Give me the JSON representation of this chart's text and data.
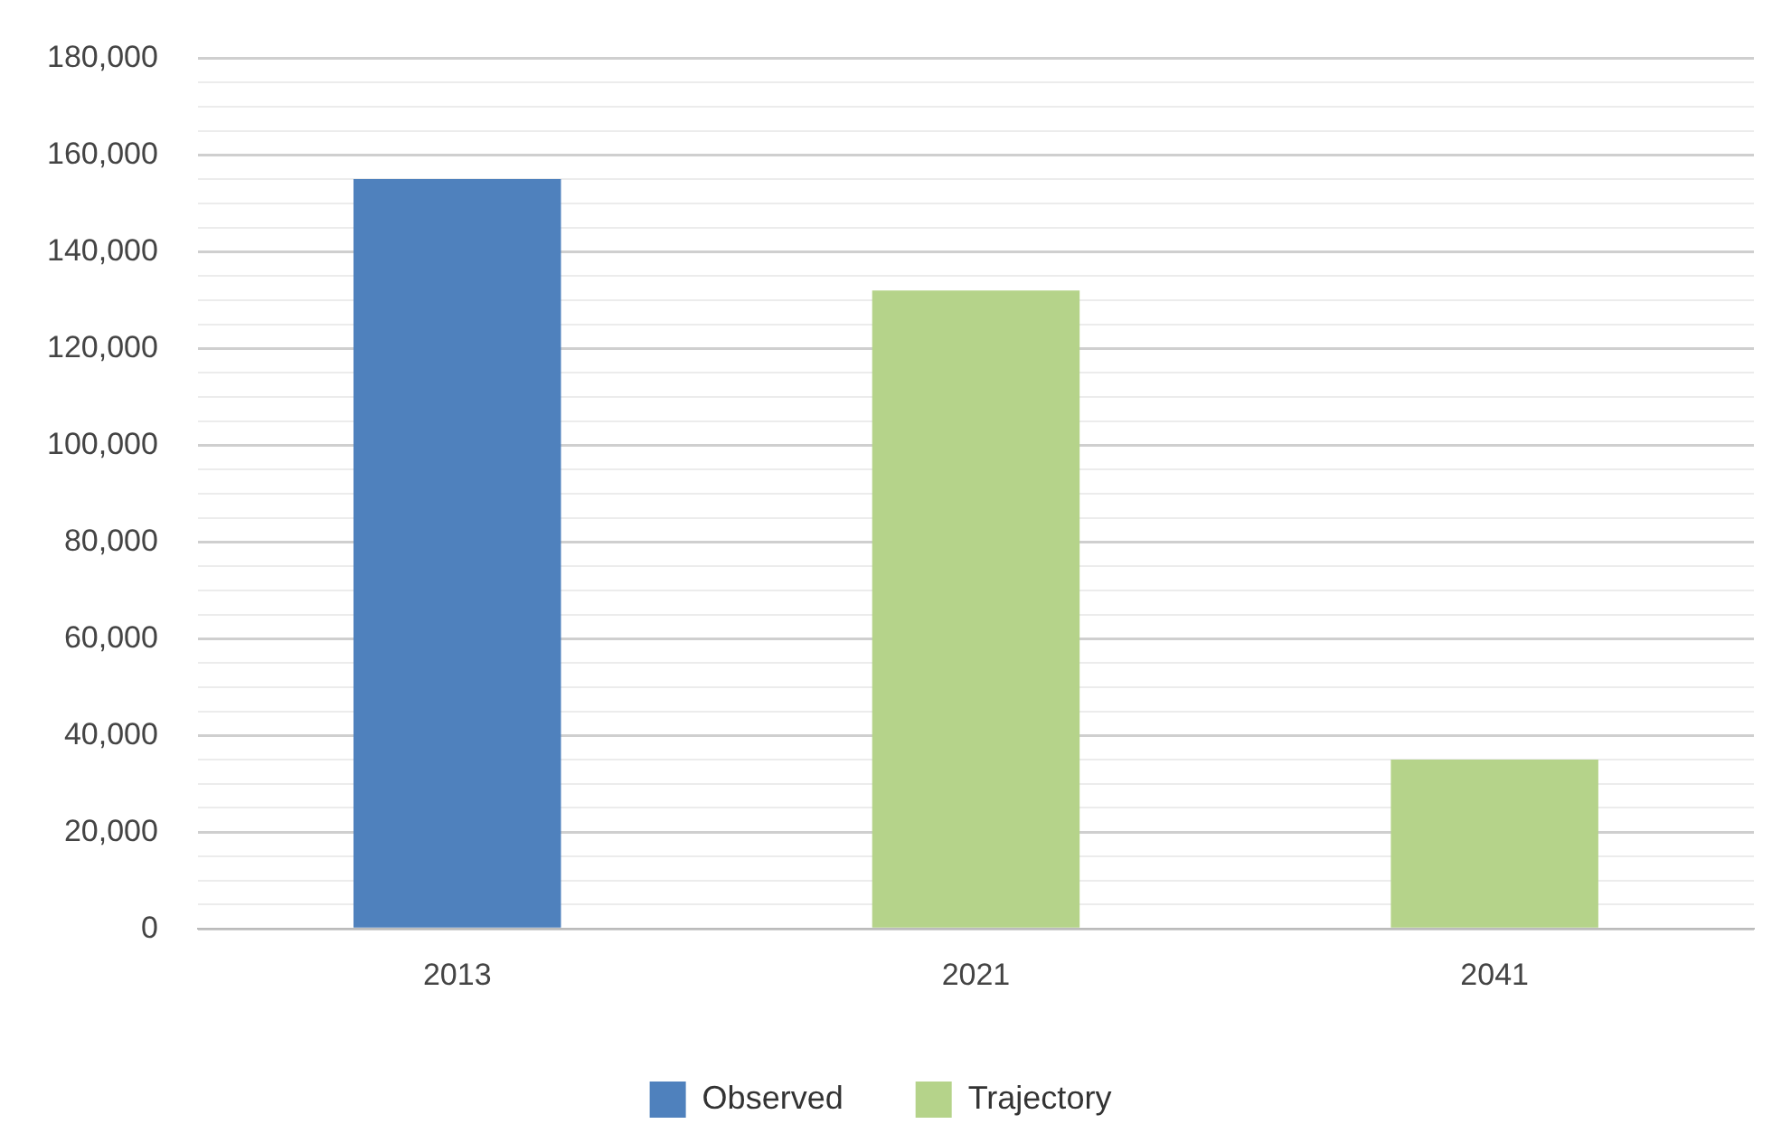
{
  "chart_data": {
    "type": "bar",
    "categories": [
      "2013",
      "2021",
      "2041"
    ],
    "series": [
      {
        "name": "Observed",
        "color": "#4f81bd",
        "values": [
          155000,
          null,
          null
        ]
      },
      {
        "name": "Trajectory",
        "color": "#b5d38a",
        "values": [
          null,
          132000,
          35000
        ]
      }
    ],
    "ylim": [
      0,
      180000
    ],
    "yticks": [
      0,
      {
        "value": 5000,
        "label": null
      },
      {
        "value": 10000,
        "label": null
      },
      {
        "value": 15000,
        "label": null
      },
      {
        "value": 20000,
        "label": "20,000"
      },
      {
        "value": 25000,
        "label": null
      },
      {
        "value": 30000,
        "label": null
      },
      {
        "value": 35000,
        "label": null
      },
      {
        "value": 40000,
        "label": "40,000"
      },
      {
        "value": 45000,
        "label": null
      },
      {
        "value": 50000,
        "label": null
      },
      {
        "value": 55000,
        "label": null
      },
      {
        "value": 60000,
        "label": "60,000"
      },
      {
        "value": 65000,
        "label": null
      },
      {
        "value": 70000,
        "label": null
      },
      {
        "value": 75000,
        "label": null
      },
      {
        "value": 80000,
        "label": "80,000"
      },
      {
        "value": 85000,
        "label": null
      },
      {
        "value": 90000,
        "label": null
      },
      {
        "value": 95000,
        "label": null
      },
      {
        "value": 100000,
        "label": "100,000"
      },
      {
        "value": 105000,
        "label": null
      },
      {
        "value": 110000,
        "label": null
      },
      {
        "value": 115000,
        "label": null
      },
      {
        "value": 120000,
        "label": "120,000"
      },
      {
        "value": 125000,
        "label": null
      },
      {
        "value": 130000,
        "label": null
      },
      {
        "value": 135000,
        "label": null
      },
      {
        "value": 140000,
        "label": "140,000"
      },
      {
        "value": 145000,
        "label": null
      },
      {
        "value": 150000,
        "label": null
      },
      {
        "value": 155000,
        "label": null
      },
      {
        "value": 160000,
        "label": "160,000"
      },
      {
        "value": 165000,
        "label": null
      },
      {
        "value": 170000,
        "label": null
      },
      {
        "value": 175000,
        "label": null
      },
      {
        "value": 180000,
        "label": "180,000"
      }
    ],
    "grid": "y",
    "legend": "bottom"
  }
}
